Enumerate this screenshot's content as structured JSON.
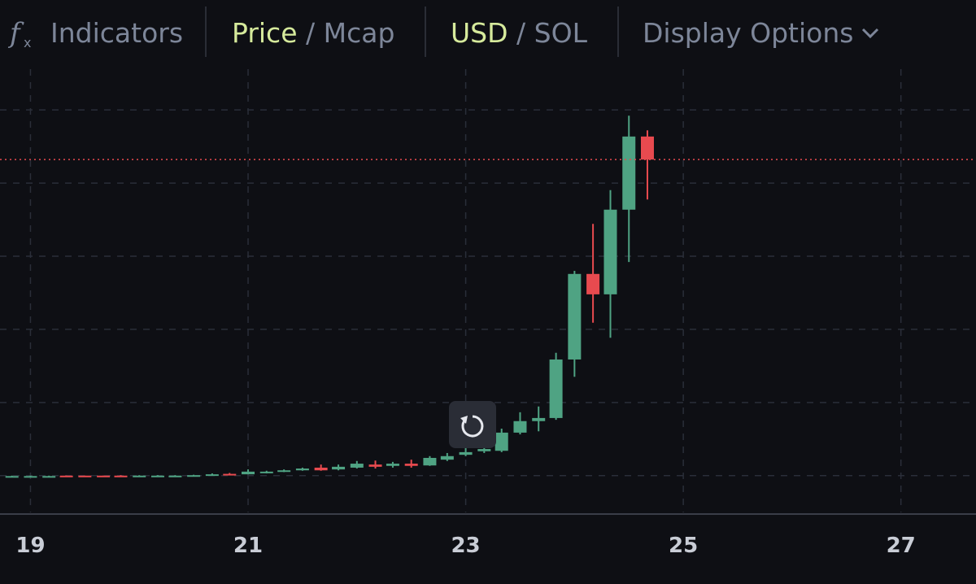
{
  "toolbar": {
    "indicators": "Indicators",
    "price_toggle": {
      "active": "Price",
      "separator": "/",
      "inactive": "Mcap"
    },
    "currency_toggle": {
      "active": "USD",
      "separator": "/",
      "inactive": "SOL"
    },
    "display_options": "Display Options"
  },
  "chart_data": {
    "type": "candlestick",
    "up_color": "#4fa383",
    "down_color": "#e84a4f",
    "price_line": true,
    "grid": true,
    "x": [
      18.83,
      19,
      19.17,
      19.33,
      19.5,
      19.67,
      19.83,
      20,
      20.17,
      20.33,
      20.5,
      20.67,
      20.83,
      21,
      21.17,
      21.33,
      21.5,
      21.67,
      21.83,
      22,
      22.17,
      22.33,
      22.5,
      22.67,
      22.83,
      23,
      23.17,
      23.33,
      23.5,
      23.67,
      23.83,
      24,
      24.17,
      24.33,
      24.5,
      24.67
    ],
    "open": [
      8.1,
      8.1,
      8.1,
      8.3,
      8.3,
      8.3,
      8.3,
      8.2,
      8.2,
      8.2,
      8.3,
      8.4,
      8.7,
      8.6,
      9.0,
      9.2,
      9.5,
      10.1,
      9.7,
      10.1,
      10.8,
      10.5,
      11.0,
      10.6,
      11.9,
      13.0,
      13.8,
      13.9,
      18.0,
      20.6,
      21.3,
      34.5,
      53.8,
      49.2,
      68.3,
      84.8
    ],
    "high": [
      8.3,
      8.3,
      8.3,
      8.3,
      8.3,
      8.3,
      8.4,
      8.4,
      8.4,
      8.4,
      8.5,
      8.8,
      8.9,
      9.7,
      9.4,
      9.7,
      10.1,
      10.8,
      10.8,
      11.6,
      11.7,
      11.4,
      11.9,
      12.7,
      13.4,
      15.6,
      16.5,
      18.9,
      22.6,
      23.9,
      36.0,
      54.5,
      65.1,
      72.7,
      89.5,
      86.2
    ],
    "low": [
      8.0,
      8.0,
      8.0,
      8.1,
      8.1,
      8.1,
      8.1,
      8.1,
      8.1,
      8.2,
      8.2,
      8.4,
      8.4,
      8.6,
      8.8,
      9.1,
      9.4,
      9.4,
      9.5,
      9.9,
      9.9,
      10.1,
      10.1,
      10.5,
      11.6,
      12.7,
      13.4,
      13.6,
      17.6,
      18.3,
      20.9,
      30.6,
      42.8,
      39.4,
      56.5,
      70.6
    ],
    "close": [
      8.2,
      8.2,
      8.2,
      8.2,
      8.2,
      8.2,
      8.2,
      8.3,
      8.3,
      8.3,
      8.4,
      8.6,
      8.5,
      9.2,
      9.2,
      9.5,
      9.9,
      9.5,
      10.3,
      11.0,
      10.3,
      11.0,
      10.5,
      12.3,
      12.7,
      13.6,
      14.3,
      18.0,
      20.6,
      21.3,
      34.5,
      53.8,
      49.2,
      68.3,
      84.8,
      79.6
    ],
    "xlim": [
      18.72,
      27.69
    ],
    "xticks": [
      19,
      21,
      23,
      25,
      27
    ],
    "ylim": [
      0,
      100
    ],
    "yticks": [
      8.3,
      24.8,
      41.3,
      57.8,
      74.3,
      90.8
    ]
  }
}
